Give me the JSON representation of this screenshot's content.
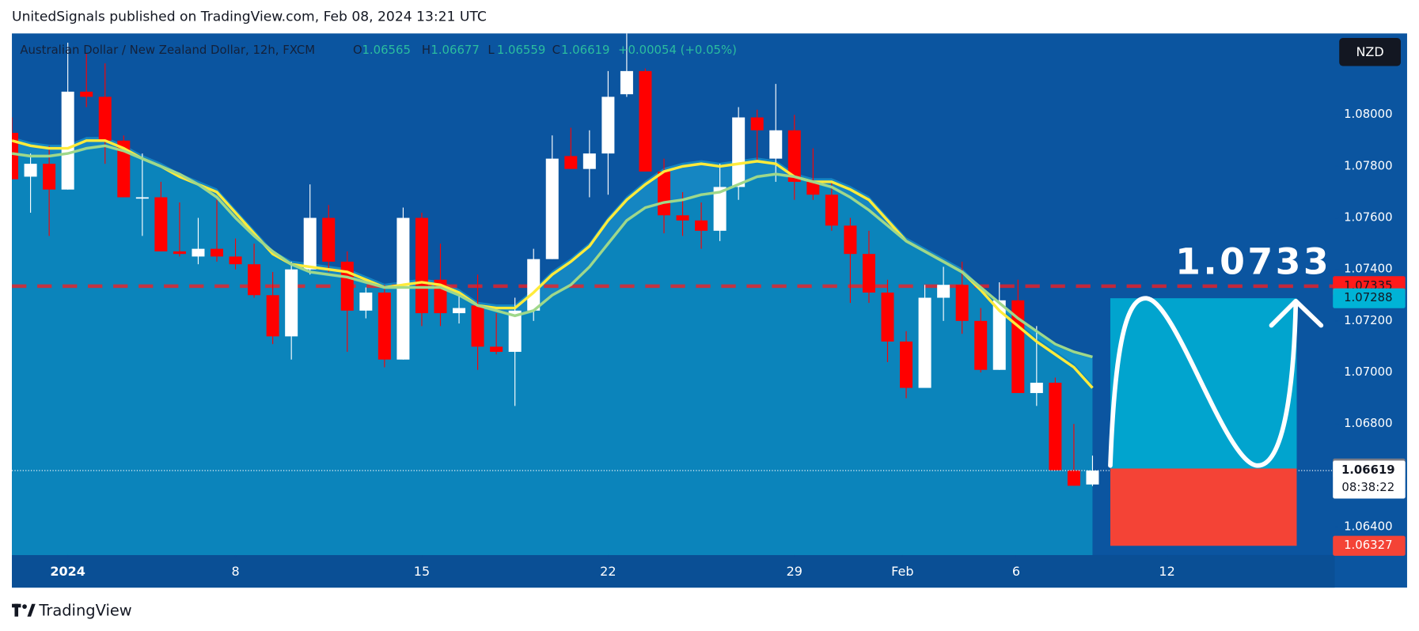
{
  "header": "UnitedSignals published on TradingView.com, Feb 08, 2024 13:21 UTC",
  "footer": "TradingView",
  "chart_data": {
    "type": "candlestick",
    "legend": {
      "symbol": "Australian Dollar / New Zealand Dollar, 12h, FXCM",
      "letters": [
        "O",
        "H",
        "L",
        "C"
      ],
      "change": "+0.00054 (+0.05%)"
    },
    "currency": "NZD",
    "open": [
      1.0793,
      1.0776,
      1.0781,
      1.0771,
      1.0809,
      1.0807,
      1.079,
      1.0768,
      1.0768,
      1.0747,
      1.0745,
      1.0748,
      1.0745,
      1.0742,
      1.073,
      1.0714,
      1.074,
      1.076,
      1.0743,
      1.0724,
      1.0731,
      1.0705,
      1.076,
      1.0736,
      1.0723,
      1.0726,
      1.071,
      1.0708,
      1.0724,
      1.0744,
      1.0784,
      1.0779,
      1.0785,
      1.0808,
      1.0817,
      1.0778,
      1.0761,
      1.0759,
      1.0755,
      1.0772,
      1.0799,
      1.0783,
      1.0794,
      1.0774,
      1.0769,
      1.0757,
      1.0746,
      1.0731,
      1.0712,
      1.0694,
      1.0729,
      1.0734,
      1.072,
      1.0701,
      1.0728,
      1.0692,
      1.0696,
      1.0662,
      1.06565
    ],
    "high": [
      1.0799,
      1.0785,
      1.0788,
      1.0828,
      1.0824,
      1.082,
      1.0792,
      1.0785,
      1.0774,
      1.0766,
      1.076,
      1.0767,
      1.0752,
      1.075,
      1.0739,
      1.0743,
      1.0773,
      1.0765,
      1.0747,
      1.0733,
      1.0734,
      1.0764,
      1.0762,
      1.075,
      1.0731,
      1.0738,
      1.0723,
      1.0729,
      1.0748,
      1.0792,
      1.0795,
      1.0794,
      1.0817,
      1.0832,
      1.0818,
      1.0783,
      1.077,
      1.0766,
      1.0781,
      1.0803,
      1.0802,
      1.0812,
      1.08,
      1.0787,
      1.0774,
      1.076,
      1.0755,
      1.0736,
      1.0716,
      1.0734,
      1.0741,
      1.0743,
      1.0725,
      1.0735,
      1.0736,
      1.0718,
      1.0698,
      1.068,
      1.06677
    ],
    "low": [
      1.0775,
      1.0762,
      1.0753,
      1.0771,
      1.0803,
      1.0781,
      1.0768,
      1.0753,
      1.0747,
      1.0745,
      1.0742,
      1.0743,
      1.074,
      1.0729,
      1.0711,
      1.0705,
      1.0738,
      1.0739,
      1.0708,
      1.0721,
      1.0702,
      1.0705,
      1.0718,
      1.0718,
      1.0719,
      1.0701,
      1.0707,
      1.0687,
      1.072,
      1.0744,
      1.0779,
      1.0768,
      1.0769,
      1.0807,
      1.0778,
      1.0754,
      1.0753,
      1.0748,
      1.0751,
      1.0767,
      1.0782,
      1.0774,
      1.0767,
      1.0767,
      1.0755,
      1.0727,
      1.0727,
      1.0704,
      1.069,
      1.0694,
      1.072,
      1.0715,
      1.07,
      1.0701,
      1.0692,
      1.0687,
      1.0662,
      1.0656,
      1.06559
    ],
    "close": [
      1.0775,
      1.0781,
      1.0771,
      1.0809,
      1.0807,
      1.079,
      1.0768,
      1.0768,
      1.0747,
      1.0746,
      1.0748,
      1.0745,
      1.0742,
      1.073,
      1.0714,
      1.074,
      1.076,
      1.0743,
      1.0724,
      1.0731,
      1.0705,
      1.076,
      1.0723,
      1.0723,
      1.0725,
      1.071,
      1.0708,
      1.0724,
      1.0744,
      1.0783,
      1.0779,
      1.0785,
      1.0807,
      1.0817,
      1.0778,
      1.0761,
      1.0759,
      1.0755,
      1.0772,
      1.0799,
      1.0794,
      1.0794,
      1.0774,
      1.0769,
      1.0757,
      1.0746,
      1.0731,
      1.0712,
      1.0694,
      1.0729,
      1.0734,
      1.072,
      1.0701,
      1.0728,
      1.0692,
      1.0696,
      1.0662,
      1.0656,
      1.06619
    ],
    "up_color": "#ffffff",
    "down_color": "#ff0000",
    "series": [
      {
        "color": "#ffeb3b",
        "values": [
          1.079,
          1.0788,
          1.0787,
          1.0787,
          1.079,
          1.079,
          1.0787,
          1.0783,
          1.078,
          1.0776,
          1.0773,
          1.077,
          1.0762,
          1.0754,
          1.0746,
          1.0742,
          1.0741,
          1.074,
          1.0739,
          1.0736,
          1.0733,
          1.0734,
          1.0735,
          1.0734,
          1.0731,
          1.0726,
          1.0725,
          1.0725,
          1.0731,
          1.0738,
          1.0743,
          1.0749,
          1.0759,
          1.0767,
          1.0773,
          1.0778,
          1.078,
          1.0781,
          1.078,
          1.0781,
          1.0782,
          1.0781,
          1.0776,
          1.0774,
          1.0774,
          1.0771,
          1.0767,
          1.0759,
          1.0751,
          1.0747,
          1.0743,
          1.0739,
          1.0732,
          1.0724,
          1.0718,
          1.0712,
          1.0707,
          1.0702,
          1.0694
        ]
      },
      {
        "color": "#9fd88a",
        "values": [
          1.0785,
          1.0784,
          1.0784,
          1.0785,
          1.0787,
          1.0788,
          1.0786,
          1.0783,
          1.078,
          1.0777,
          1.0773,
          1.0768,
          1.076,
          1.0753,
          1.0747,
          1.0742,
          1.0739,
          1.0738,
          1.0737,
          1.0735,
          1.0733,
          1.0733,
          1.0733,
          1.0733,
          1.073,
          1.0726,
          1.0724,
          1.0722,
          1.0724,
          1.073,
          1.0734,
          1.0741,
          1.075,
          1.0759,
          1.0764,
          1.0766,
          1.0767,
          1.0769,
          1.077,
          1.0773,
          1.0776,
          1.0777,
          1.0776,
          1.0774,
          1.0772,
          1.0768,
          1.0763,
          1.0757,
          1.0751,
          1.0747,
          1.0743,
          1.0739,
          1.0733,
          1.0727,
          1.0721,
          1.0716,
          1.0711,
          1.0708,
          1.0706
        ]
      }
    ],
    "hline": {
      "value": 1.07335,
      "color": "#ff1a1a"
    },
    "annotation": "1.0733",
    "position": {
      "target": 1.07288,
      "entry": 1.06627,
      "stop": 1.06327,
      "target_color": "#00b3d6",
      "stop_color": "#f44336"
    },
    "countdown": "08:38:22",
    "xlim": [
      0,
      71
    ],
    "xticks": [
      {
        "value": 3,
        "label": "2024"
      },
      {
        "value": 12,
        "label": "8"
      },
      {
        "value": 22,
        "label": "15"
      },
      {
        "value": 32,
        "label": "22"
      },
      {
        "value": 42,
        "label": "29"
      },
      {
        "value": 47.8,
        "label": "Feb"
      },
      {
        "value": 53.9,
        "label": "6"
      },
      {
        "value": 62,
        "label": "12"
      }
    ],
    "ylim": [
      1.06291,
      1.08316
    ],
    "yticks": [
      {
        "value": 1.064,
        "label": "1.06400"
      },
      {
        "value": 1.068,
        "label": "1.06800"
      },
      {
        "value": 1.07,
        "label": "1.07000"
      },
      {
        "value": 1.072,
        "label": "1.07200"
      },
      {
        "value": 1.074,
        "label": "1.07400"
      },
      {
        "value": 1.076,
        "label": "1.07600"
      },
      {
        "value": 1.078,
        "label": "1.07800"
      },
      {
        "value": 1.08,
        "label": "1.08000"
      }
    ]
  }
}
